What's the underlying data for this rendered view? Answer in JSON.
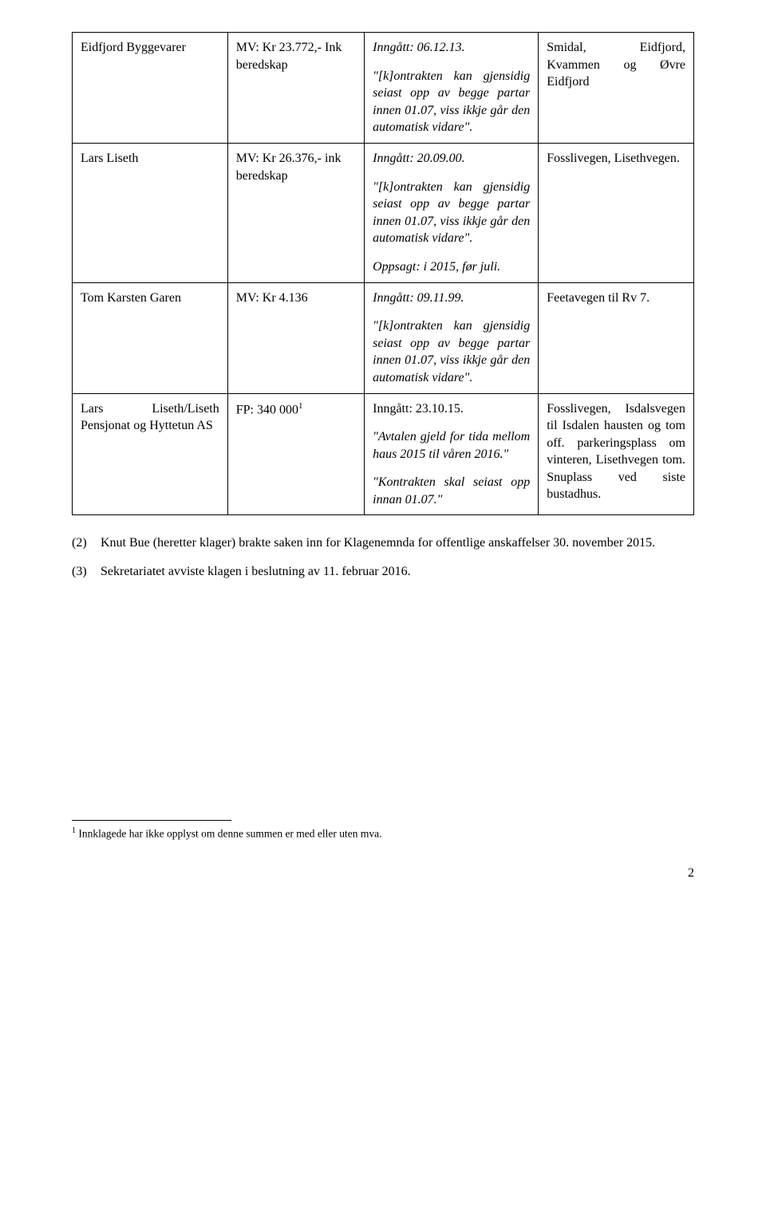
{
  "table": {
    "rows": [
      {
        "c1": "Eidfjord Byggevarer",
        "c2": "MV: Kr 23.772,- Ink beredskap",
        "c3": {
          "p1": "Inngått: 06.12.13.",
          "p2": "\"[k]ontrakten kan gjensidig seiast opp av begge partar innen 01.07, viss ikkje går den automatisk vidare\"."
        },
        "c4": "Smidal, Eidfjord, Kvammen og Øvre Eidfjord"
      },
      {
        "c1": "Lars Liseth",
        "c2": "MV: Kr 26.376,- ink beredskap",
        "c3": {
          "p1": "Inngått: 20.09.00.",
          "p2": "\"[k]ontrakten kan gjensidig seiast opp av begge partar innen 01.07, viss ikkje går den automatisk vidare\".",
          "p3": "Oppsagt: i 2015, før juli."
        },
        "c4": "Fosslivegen, Lisethvegen."
      },
      {
        "c1": "Tom Karsten Garen",
        "c2": "MV: Kr 4.136",
        "c3": {
          "p1": "Inngått: 09.11.99.",
          "p2": "\"[k]ontrakten kan gjensidig seiast opp av begge partar innen 01.07, viss ikkje går den automatisk vidare\"."
        },
        "c4": "Feetavegen til Rv 7."
      },
      {
        "c1": "Lars Liseth/Liseth Pensjonat og Hyttetun AS",
        "c2_pre": "FP: 340 000",
        "c2_fn": "1",
        "c3": {
          "p1": "Inngått: 23.10.15.",
          "p2": "\"Avtalen gjeld for tida mellom haus 2015 til våren 2016.\"",
          "p3": "\"Kontrakten skal seiast opp innan 01.07.\""
        },
        "c4": "Fosslivegen, Isdalsvegen til Isdalen hausten og tom off. parkeringsplass om vinteren, Lisethvegen tom. Snuplass ved siste bustadhus."
      }
    ]
  },
  "paragraphs": {
    "p2": {
      "num": "(2)",
      "text": "Knut Bue (heretter klager) brakte saken inn for Klagenemnda for offentlige anskaffelser 30. november 2015."
    },
    "p3": {
      "num": "(3)",
      "text": "Sekretariatet avviste klagen i beslutning av 11. februar 2016."
    }
  },
  "footnote": {
    "marker": "1",
    "text": " Innklagede har ikke opplyst om denne summen er med eller uten mva."
  },
  "page_number": "2"
}
